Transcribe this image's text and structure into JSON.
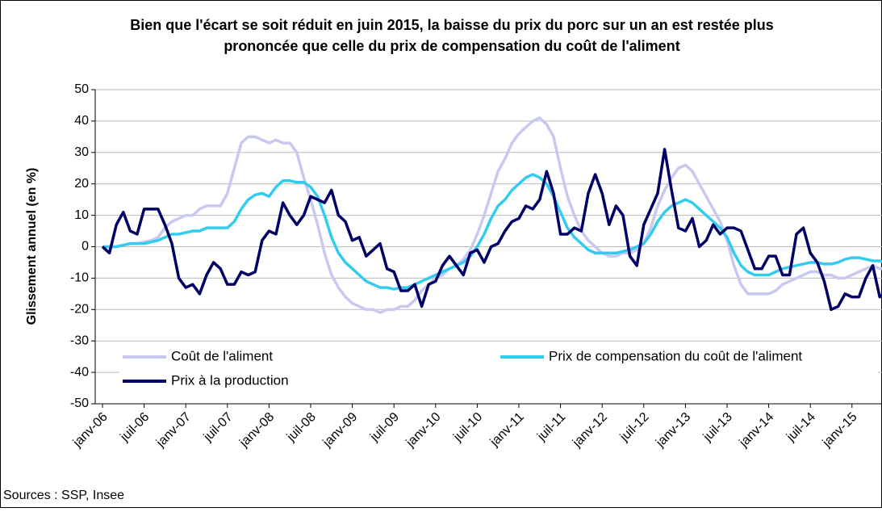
{
  "chart_data": {
    "type": "line",
    "title": "Bien que l'écart se soit réduit en juin 2015, la baisse du prix du porc sur un an est restée plus prononcée que celle du prix de compensation du coût de l'aliment",
    "y_label": "Glissement annuel (en %)",
    "source": "Sources : SSP, Insee",
    "categories": [
      "janv-06",
      null,
      null,
      null,
      null,
      null,
      "juil-06",
      null,
      null,
      null,
      null,
      null,
      "janv-07",
      null,
      null,
      null,
      null,
      null,
      "juil-07",
      null,
      null,
      null,
      null,
      null,
      "janv-08",
      null,
      null,
      null,
      null,
      null,
      "juil-08",
      null,
      null,
      null,
      null,
      null,
      "janv-09",
      null,
      null,
      null,
      null,
      null,
      "juil-09",
      null,
      null,
      null,
      null,
      null,
      "janv-10",
      null,
      null,
      null,
      null,
      null,
      "juil-10",
      null,
      null,
      null,
      null,
      null,
      "janv-11",
      null,
      null,
      null,
      null,
      null,
      "juil-11",
      null,
      null,
      null,
      null,
      null,
      "janv-12",
      null,
      null,
      null,
      null,
      null,
      "juil-12",
      null,
      null,
      null,
      null,
      null,
      "janv-13",
      null,
      null,
      null,
      null,
      null,
      "juil-13",
      null,
      null,
      null,
      null,
      null,
      "janv-14",
      null,
      null,
      null,
      null,
      null,
      "juil-14",
      null,
      null,
      null,
      null,
      null,
      "janv-15",
      null,
      null,
      null,
      null,
      null
    ],
    "series": [
      {
        "name": "Coût de l'aliment",
        "color": "#c8c8f0",
        "values": [
          0,
          0,
          0,
          0.5,
          1,
          1,
          1.5,
          2,
          3,
          6,
          8,
          9,
          10,
          10,
          12,
          13,
          13,
          13,
          17,
          25,
          33,
          35,
          35,
          34,
          33,
          34,
          33,
          33,
          30,
          22,
          15,
          7,
          -2,
          -9,
          -13,
          -16,
          -18,
          -19,
          -20,
          -20,
          -21,
          -20,
          -20,
          -19,
          -19,
          -17,
          -14,
          -12,
          -10,
          -9,
          -7,
          -6,
          -4,
          -1,
          4,
          10,
          17,
          24,
          28,
          33,
          36,
          38,
          40,
          41,
          39,
          35,
          25,
          16,
          10,
          5,
          2,
          0,
          -2,
          -3,
          -3,
          -2,
          -2,
          -1,
          1,
          6,
          13,
          18,
          22,
          25,
          26,
          24,
          20,
          16,
          12,
          8,
          2,
          -6,
          -12,
          -15,
          -15,
          -15,
          -15,
          -14,
          -12,
          -11,
          -10,
          -9,
          -8,
          -8,
          -9,
          -9,
          -10,
          -10,
          -9,
          -8,
          -7,
          -6,
          -7,
          -7
        ]
      },
      {
        "name": "Prix de compensation du coût de l'aliment",
        "color": "#33ccee",
        "values": [
          0,
          0,
          0,
          0.5,
          1,
          1,
          1,
          1.5,
          2,
          3,
          4,
          4,
          4.5,
          5,
          5,
          6,
          6,
          6,
          6,
          8,
          12,
          15,
          16.5,
          17,
          16,
          19,
          21,
          21,
          20.5,
          20.5,
          19,
          16,
          10,
          3,
          -2,
          -5,
          -7,
          -9,
          -11,
          -12,
          -13,
          -13,
          -13.5,
          -13,
          -13,
          -12,
          -11,
          -10,
          -9,
          -8,
          -7,
          -6,
          -5,
          -3,
          0,
          4,
          9,
          13,
          15,
          18,
          20,
          22,
          23,
          22,
          20,
          16,
          11,
          6,
          3,
          1,
          -1,
          -2,
          -2,
          -2,
          -2,
          -1.5,
          -1,
          0,
          1,
          4,
          8,
          11,
          13,
          14,
          15,
          14,
          12,
          10,
          8,
          6,
          3,
          -2,
          -6,
          -8,
          -9,
          -9,
          -9,
          -8,
          -7,
          -6.5,
          -6,
          -5.5,
          -5,
          -5,
          -5.5,
          -5.5,
          -5,
          -4,
          -3.5,
          -3.5,
          -4,
          -4.5,
          -4.5,
          -5
        ]
      },
      {
        "name": "Prix à la production",
        "color": "#000066",
        "values": [
          0,
          -2,
          7,
          11,
          5,
          4,
          12,
          12,
          12,
          7,
          1,
          -10,
          -13,
          -12,
          -15,
          -9,
          -5,
          -7,
          -12,
          -12,
          -8,
          -9,
          -8,
          2,
          5,
          4,
          14,
          10,
          7,
          10,
          16,
          15,
          14,
          18,
          10,
          8,
          2,
          3,
          -3,
          -1,
          1,
          -7,
          -8,
          -14,
          -14,
          -12,
          -19,
          -12,
          -11,
          -6,
          -3,
          -6,
          -9,
          -2,
          -1,
          -5,
          0,
          1,
          5,
          8,
          9,
          13,
          12,
          15,
          24,
          17,
          4,
          4,
          6,
          5,
          17,
          23,
          17,
          7,
          13,
          10,
          -3,
          -6,
          7,
          12,
          17,
          31,
          18,
          6,
          5,
          9,
          0,
          2,
          7,
          4,
          6,
          6,
          5,
          -1,
          -7,
          -7,
          -3,
          -3,
          -9,
          -9,
          4,
          6,
          -2,
          -5,
          -11,
          -20,
          -19,
          -15,
          -16,
          -16,
          -10,
          -6,
          -16,
          -14
        ]
      }
    ],
    "ylim": [
      -50,
      50
    ],
    "yticks": [
      -50,
      -40,
      -30,
      -20,
      -10,
      0,
      10,
      20,
      30,
      40,
      50
    ],
    "grid": true
  }
}
